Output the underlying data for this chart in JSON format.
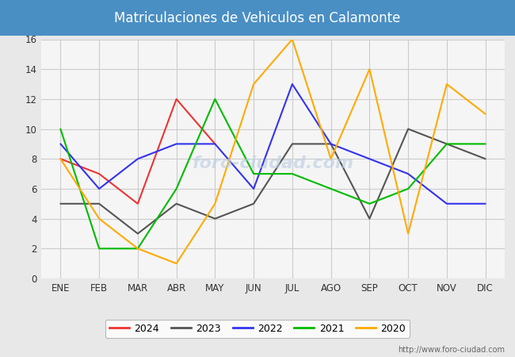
{
  "title": "Matriculaciones de Vehiculos en Calamonte",
  "title_color": "white",
  "title_bg_color": "#4a8fc4",
  "months": [
    "ENE",
    "FEB",
    "MAR",
    "ABR",
    "MAY",
    "JUN",
    "JUL",
    "AGO",
    "SEP",
    "OCT",
    "NOV",
    "DIC"
  ],
  "series": {
    "2024": {
      "color": "#ee3333",
      "data": [
        8,
        7,
        5,
        12,
        9,
        null,
        null,
        null,
        null,
        null,
        null,
        null
      ]
    },
    "2023": {
      "color": "#555555",
      "data": [
        5,
        5,
        3,
        5,
        4,
        5,
        9,
        9,
        4,
        10,
        9,
        8
      ]
    },
    "2022": {
      "color": "#3333ee",
      "data": [
        9,
        6,
        8,
        9,
        9,
        6,
        13,
        9,
        8,
        7,
        5,
        5
      ]
    },
    "2021": {
      "color": "#00bb00",
      "data": [
        10,
        2,
        2,
        6,
        12,
        7,
        7,
        6,
        5,
        6,
        9,
        9
      ]
    },
    "2020": {
      "color": "#ffaa00",
      "data": [
        8,
        4,
        2,
        1,
        5,
        13,
        16,
        8,
        14,
        3,
        13,
        11
      ]
    }
  },
  "ylim": [
    0,
    16
  ],
  "yticks": [
    0,
    2,
    4,
    6,
    8,
    10,
    12,
    14,
    16
  ],
  "fig_bg_color": "#e8e8e8",
  "plot_bg_color": "#e8e8e8",
  "inner_plot_bg": "#f5f5f5",
  "grid_color": "#cccccc",
  "url": "http://www.foro-ciudad.com",
  "legend_order": [
    "2024",
    "2023",
    "2022",
    "2021",
    "2020"
  ]
}
